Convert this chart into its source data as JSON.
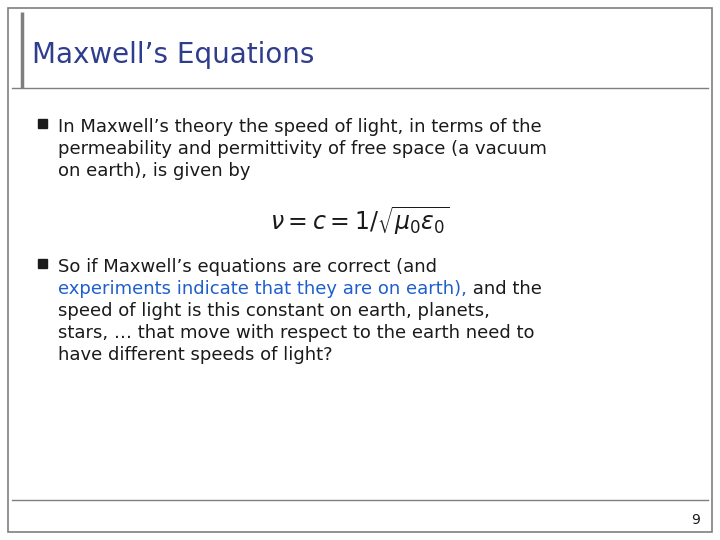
{
  "title": "Maxwell’s Equations",
  "title_color": "#2E3E8C",
  "title_fontsize": 20,
  "background_color": "#FFFFFF",
  "border_color": "#7F7F7F",
  "bullet_color": "#1A1A1A",
  "highlight_color": "#1F5FCC",
  "bullet1_lines": [
    "In Maxwell’s theory the speed of light, in terms of the",
    "permeability and permittivity of free space (a vacuum",
    "on earth), is given by"
  ],
  "bullet2_line1": "So if Maxwell’s equations are correct (and",
  "bullet2_highlight": "experiments indicate that they are on earth),",
  "bullet2_after_highlight": " and the",
  "bullet2_lines_rest": [
    "speed of light is this constant on earth, planets,",
    "stars, … that move with respect to the earth need to",
    "have different speeds of light?"
  ],
  "equation": "$\\nu = c = 1/\\sqrt{\\mu_0 \\varepsilon_0}$",
  "page_number": "9",
  "text_fontsize": 13,
  "eq_fontsize": 17
}
